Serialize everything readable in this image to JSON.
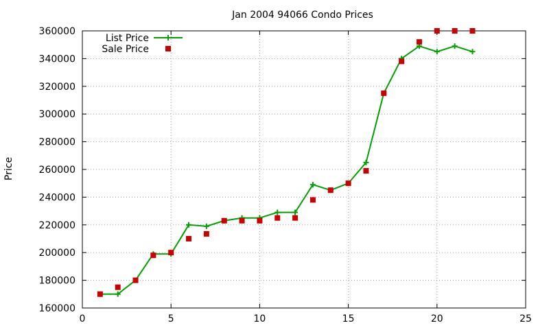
{
  "chart_data": {
    "type": "line",
    "title": "Jan 2004 94066 Condo Prices",
    "xlabel": "",
    "ylabel": "Price",
    "xlim": [
      0,
      25
    ],
    "ylim": [
      160000,
      360000
    ],
    "xticks": [
      0,
      5,
      10,
      15,
      20,
      25
    ],
    "yticks": [
      160000,
      180000,
      200000,
      220000,
      240000,
      260000,
      280000,
      300000,
      320000,
      340000,
      360000
    ],
    "grid": true,
    "legend": "top-left",
    "series": [
      {
        "name": "List Price",
        "style": "line-with-plus-markers",
        "color": "#00a000",
        "x": [
          1,
          2,
          3,
          4,
          5,
          6,
          7,
          8,
          9,
          10,
          11,
          12,
          13,
          14,
          15,
          16,
          17,
          18,
          19,
          20,
          21,
          22
        ],
        "y": [
          170000,
          170000,
          180000,
          199000,
          199000,
          220000,
          219000,
          223000,
          225000,
          225000,
          229000,
          229000,
          249000,
          245000,
          250000,
          265000,
          315000,
          340000,
          349000,
          345000,
          349000,
          345000
        ]
      },
      {
        "name": "Sale Price",
        "style": "square-markers",
        "color": "#cc0000",
        "x": [
          1,
          2,
          3,
          4,
          5,
          6,
          7,
          8,
          9,
          10,
          11,
          12,
          13,
          14,
          15,
          16,
          17,
          18,
          19,
          20,
          21,
          22
        ],
        "y": [
          170000,
          175000,
          180000,
          198000,
          200000,
          210000,
          213500,
          223000,
          223000,
          223000,
          225000,
          225000,
          238000,
          245000,
          250000,
          259000,
          315000,
          338000,
          352000,
          360000,
          360000,
          360000
        ]
      }
    ]
  }
}
